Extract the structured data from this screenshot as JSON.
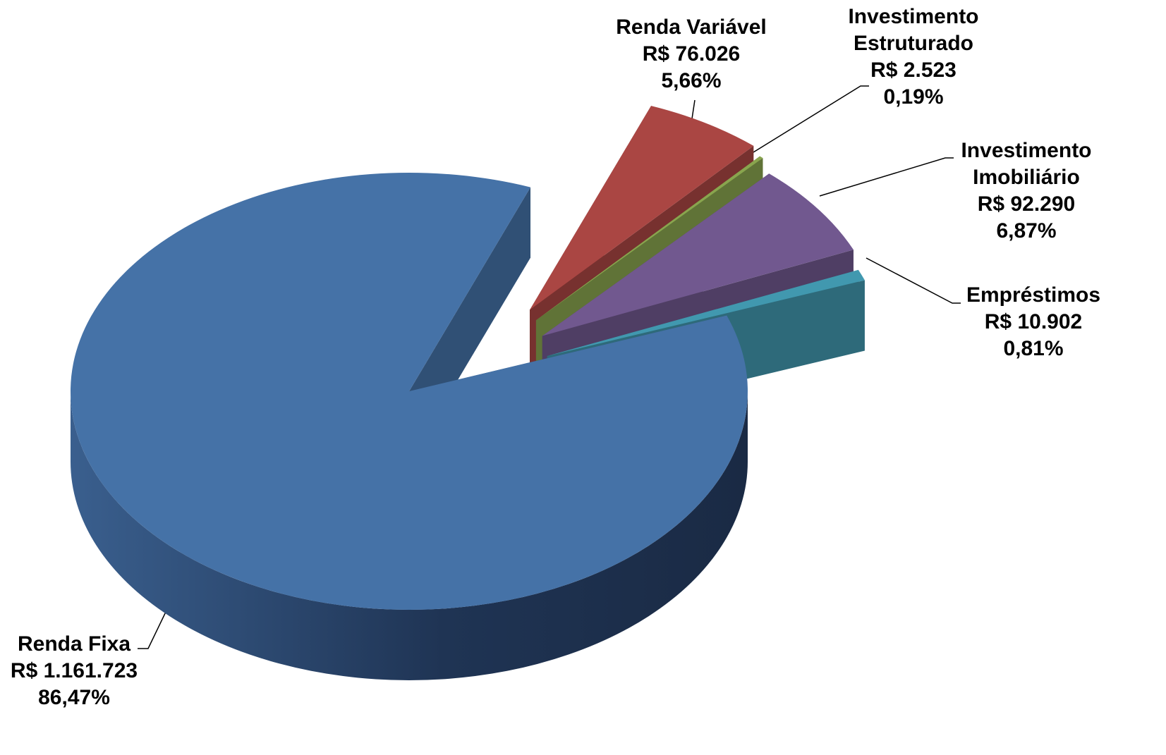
{
  "chart_data": {
    "type": "pie",
    "categories": [
      "Renda Variável",
      "Investimento Estruturado",
      "Investimento Imobiliário",
      "Empréstimos",
      "Renda Fixa"
    ],
    "values": [
      5.66,
      0.19,
      6.87,
      0.81,
      86.47
    ],
    "value_labels": [
      "5,66%",
      "0,19%",
      "6,87%",
      "0,81%",
      "86,47%"
    ],
    "amounts": [
      76026,
      2523,
      92290,
      10902,
      1161723
    ],
    "amount_labels": [
      "R$ 76.026",
      "R$ 2.523",
      "R$ 92.290",
      "R$ 10.902",
      "R$ 1.161.723"
    ],
    "colors": [
      "#aa4643",
      "#89a54e",
      "#71588f",
      "#4198af",
      "#4572a7"
    ],
    "exploded": [
      true,
      true,
      true,
      true,
      false
    ]
  }
}
